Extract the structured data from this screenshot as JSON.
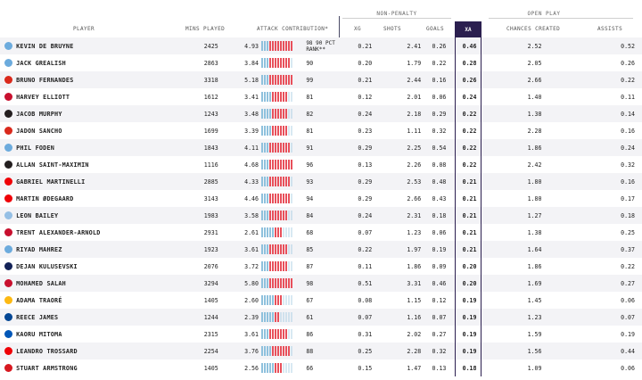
{
  "headers": {
    "player": "PLAYER",
    "mins": "MINS PLAYED",
    "attack": "ATTACK CONTRIBUTION*",
    "xg": "XG",
    "shots": "SHOTS",
    "goals": "GOALS",
    "xa": "XA",
    "chances": "CHANCES CREATED",
    "assists": "ASSISTS"
  },
  "groups": {
    "non_penalty": "NON-PENALTY",
    "open_play": "OPEN PLAY"
  },
  "pct_note": "90 PCT",
  "pct_note2": "RANK**",
  "colors": {
    "bar_low": "#8fc1dd",
    "bar_high": "#e8505b",
    "xa_header": "#2b1f4f"
  },
  "rows": [
    {
      "club": "manchester-city",
      "badge": "#6cabdd",
      "name": "KEVIN DE BRUYNE",
      "mins": "2425",
      "atk": "4.93",
      "pct": 98,
      "xg": "0.21",
      "shots": "2.41",
      "goals": "0.26",
      "xa": "0.46",
      "chances": "2.52",
      "assists": "0.52"
    },
    {
      "club": "manchester-city",
      "badge": "#6cabdd",
      "name": "JACK GREALISH",
      "mins": "2863",
      "atk": "3.84",
      "pct": 90,
      "xg": "0.20",
      "shots": "1.79",
      "goals": "0.22",
      "xa": "0.28",
      "chances": "2.05",
      "assists": "0.26"
    },
    {
      "club": "manchester-united",
      "badge": "#da291c",
      "name": "BRUNO FERNANDES",
      "mins": "3318",
      "atk": "5.18",
      "pct": 99,
      "xg": "0.21",
      "shots": "2.44",
      "goals": "0.16",
      "xa": "0.26",
      "chances": "2.66",
      "assists": "0.22"
    },
    {
      "club": "liverpool",
      "badge": "#c8102e",
      "name": "HARVEY ELLIOTT",
      "mins": "1612",
      "atk": "3.41",
      "pct": 81,
      "xg": "0.12",
      "shots": "2.01",
      "goals": "0.06",
      "xa": "0.24",
      "chances": "1.40",
      "assists": "0.11"
    },
    {
      "club": "newcastle",
      "badge": "#241f20",
      "name": "JACOB MURPHY",
      "mins": "1243",
      "atk": "3.48",
      "pct": 82,
      "xg": "0.24",
      "shots": "2.18",
      "goals": "0.29",
      "xa": "0.22",
      "chances": "1.38",
      "assists": "0.14"
    },
    {
      "club": "manchester-united",
      "badge": "#da291c",
      "name": "JADON SANCHO",
      "mins": "1699",
      "atk": "3.39",
      "pct": 81,
      "xg": "0.23",
      "shots": "1.11",
      "goals": "0.32",
      "xa": "0.22",
      "chances": "2.28",
      "assists": "0.16"
    },
    {
      "club": "manchester-city",
      "badge": "#6cabdd",
      "name": "PHIL FODEN",
      "mins": "1843",
      "atk": "4.11",
      "pct": 91,
      "xg": "0.29",
      "shots": "2.25",
      "goals": "0.54",
      "xa": "0.22",
      "chances": "1.86",
      "assists": "0.24"
    },
    {
      "club": "newcastle",
      "badge": "#241f20",
      "name": "ALLAN SAINT-MAXIMIN",
      "mins": "1116",
      "atk": "4.68",
      "pct": 96,
      "xg": "0.13",
      "shots": "2.26",
      "goals": "0.08",
      "xa": "0.22",
      "chances": "2.42",
      "assists": "0.32"
    },
    {
      "club": "arsenal",
      "badge": "#ef0107",
      "name": "GABRIEL MARTINELLI",
      "mins": "2885",
      "atk": "4.33",
      "pct": 93,
      "xg": "0.29",
      "shots": "2.53",
      "goals": "0.48",
      "xa": "0.21",
      "chances": "1.80",
      "assists": "0.16"
    },
    {
      "club": "arsenal",
      "badge": "#ef0107",
      "name": "MARTIN ØDEGAARD",
      "mins": "3143",
      "atk": "4.46",
      "pct": 94,
      "xg": "0.29",
      "shots": "2.66",
      "goals": "0.43",
      "xa": "0.21",
      "chances": "1.80",
      "assists": "0.17"
    },
    {
      "club": "aston-villa",
      "badge": "#95bfe5",
      "name": "LEON BAILEY",
      "mins": "1983",
      "atk": "3.58",
      "pct": 84,
      "xg": "0.24",
      "shots": "2.31",
      "goals": "0.18",
      "xa": "0.21",
      "chances": "1.27",
      "assists": "0.18"
    },
    {
      "club": "liverpool",
      "badge": "#c8102e",
      "name": "TRENT ALEXANDER-ARNOLD",
      "mins": "2931",
      "atk": "2.61",
      "pct": 68,
      "xg": "0.07",
      "shots": "1.23",
      "goals": "0.06",
      "xa": "0.21",
      "chances": "1.38",
      "assists": "0.25"
    },
    {
      "club": "manchester-city",
      "badge": "#6cabdd",
      "name": "RIYAD MAHREZ",
      "mins": "1923",
      "atk": "3.61",
      "pct": 85,
      "xg": "0.22",
      "shots": "1.97",
      "goals": "0.19",
      "xa": "0.21",
      "chances": "1.64",
      "assists": "0.37"
    },
    {
      "club": "tottenham",
      "badge": "#132257",
      "name": "DEJAN KULUSEVSKI",
      "mins": "2076",
      "atk": "3.72",
      "pct": 87,
      "xg": "0.11",
      "shots": "1.86",
      "goals": "0.09",
      "xa": "0.20",
      "chances": "1.86",
      "assists": "0.22"
    },
    {
      "club": "liverpool",
      "badge": "#c8102e",
      "name": "MOHAMED SALAH",
      "mins": "3294",
      "atk": "5.80",
      "pct": 98,
      "xg": "0.51",
      "shots": "3.31",
      "goals": "0.46",
      "xa": "0.20",
      "chances": "1.69",
      "assists": "0.27"
    },
    {
      "club": "wolves",
      "badge": "#fdb913",
      "name": "ADAMA TRAORÉ",
      "mins": "1405",
      "atk": "2.60",
      "pct": 67,
      "xg": "0.08",
      "shots": "1.15",
      "goals": "0.12",
      "xa": "0.19",
      "chances": "1.45",
      "assists": "0.06"
    },
    {
      "club": "chelsea",
      "badge": "#034694",
      "name": "REECE JAMES",
      "mins": "1244",
      "atk": "2.39",
      "pct": 61,
      "xg": "0.07",
      "shots": "1.16",
      "goals": "0.07",
      "xa": "0.19",
      "chances": "1.23",
      "assists": "0.07"
    },
    {
      "club": "brighton",
      "badge": "#0057b8",
      "name": "KAORU MITOMA",
      "mins": "2315",
      "atk": "3.61",
      "pct": 86,
      "xg": "0.31",
      "shots": "2.02",
      "goals": "0.27",
      "xa": "0.19",
      "chances": "1.59",
      "assists": "0.19"
    },
    {
      "club": "arsenal",
      "badge": "#ef0107",
      "name": "LEANDRO TROSSARD",
      "mins": "2254",
      "atk": "3.76",
      "pct": 88,
      "xg": "0.25",
      "shots": "2.28",
      "goals": "0.32",
      "xa": "0.19",
      "chances": "1.56",
      "assists": "0.44"
    },
    {
      "club": "southampton",
      "badge": "#d71920",
      "name": "STUART ARMSTRONG",
      "mins": "1405",
      "atk": "2.56",
      "pct": 66,
      "xg": "0.15",
      "shots": "1.47",
      "goals": "0.13",
      "xa": "0.18",
      "chances": "1.09",
      "assists": "0.06"
    }
  ]
}
